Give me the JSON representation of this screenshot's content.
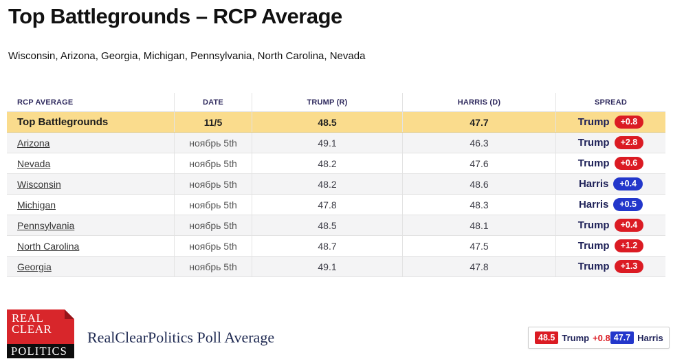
{
  "header": {
    "title": "Top Battlegrounds – RCP Average",
    "subtitle": "Wisconsin, Arizona, Georgia, Michigan, Pennsylvania, North Carolina, Nevada"
  },
  "table": {
    "columns": [
      "RCP AVERAGE",
      "DATE",
      "TRUMP (R)",
      "HARRIS (D)",
      "SPREAD"
    ],
    "rows": [
      {
        "name": "Top Battlegrounds",
        "date": "11/5",
        "trump": "48.5",
        "harris": "47.7",
        "leader": "Trump",
        "spread": "+0.8",
        "party": "rep",
        "highlighted": true
      },
      {
        "name": "Arizona",
        "date": "ноябрь 5th",
        "trump": "49.1",
        "harris": "46.3",
        "leader": "Trump",
        "spread": "+2.8",
        "party": "rep",
        "highlighted": false
      },
      {
        "name": "Nevada",
        "date": "ноябрь 5th",
        "trump": "48.2",
        "harris": "47.6",
        "leader": "Trump",
        "spread": "+0.6",
        "party": "rep",
        "highlighted": false
      },
      {
        "name": "Wisconsin",
        "date": "ноябрь 5th",
        "trump": "48.2",
        "harris": "48.6",
        "leader": "Harris",
        "spread": "+0.4",
        "party": "dem",
        "highlighted": false
      },
      {
        "name": "Michigan",
        "date": "ноябрь 5th",
        "trump": "47.8",
        "harris": "48.3",
        "leader": "Harris",
        "spread": "+0.5",
        "party": "dem",
        "highlighted": false
      },
      {
        "name": "Pennsylvania",
        "date": "ноябрь 5th",
        "trump": "48.5",
        "harris": "48.1",
        "leader": "Trump",
        "spread": "+0.4",
        "party": "rep",
        "highlighted": false
      },
      {
        "name": "North Carolina",
        "date": "ноябрь 5th",
        "trump": "48.7",
        "harris": "47.5",
        "leader": "Trump",
        "spread": "+1.2",
        "party": "rep",
        "highlighted": false
      },
      {
        "name": "Georgia",
        "date": "ноябрь 5th",
        "trump": "49.1",
        "harris": "47.8",
        "leader": "Trump",
        "spread": "+1.3",
        "party": "rep",
        "highlighted": false
      }
    ]
  },
  "footer": {
    "logo": {
      "line1": "REAL",
      "line2": "CLEAR",
      "line3": "POLITICS"
    },
    "caption": "RealClearPolitics Poll Average",
    "legend": {
      "trump_value": "48.5",
      "trump_label": "Trump",
      "trump_spread": "+0.8",
      "harris_value": "47.7",
      "harris_label": "Harris"
    }
  },
  "colors": {
    "republican_red": "#db1b23",
    "democrat_blue": "#2337cb",
    "highlight_yellow": "#fadc8d",
    "navy_text": "#1e2158",
    "logo_red": "#d8262b"
  }
}
